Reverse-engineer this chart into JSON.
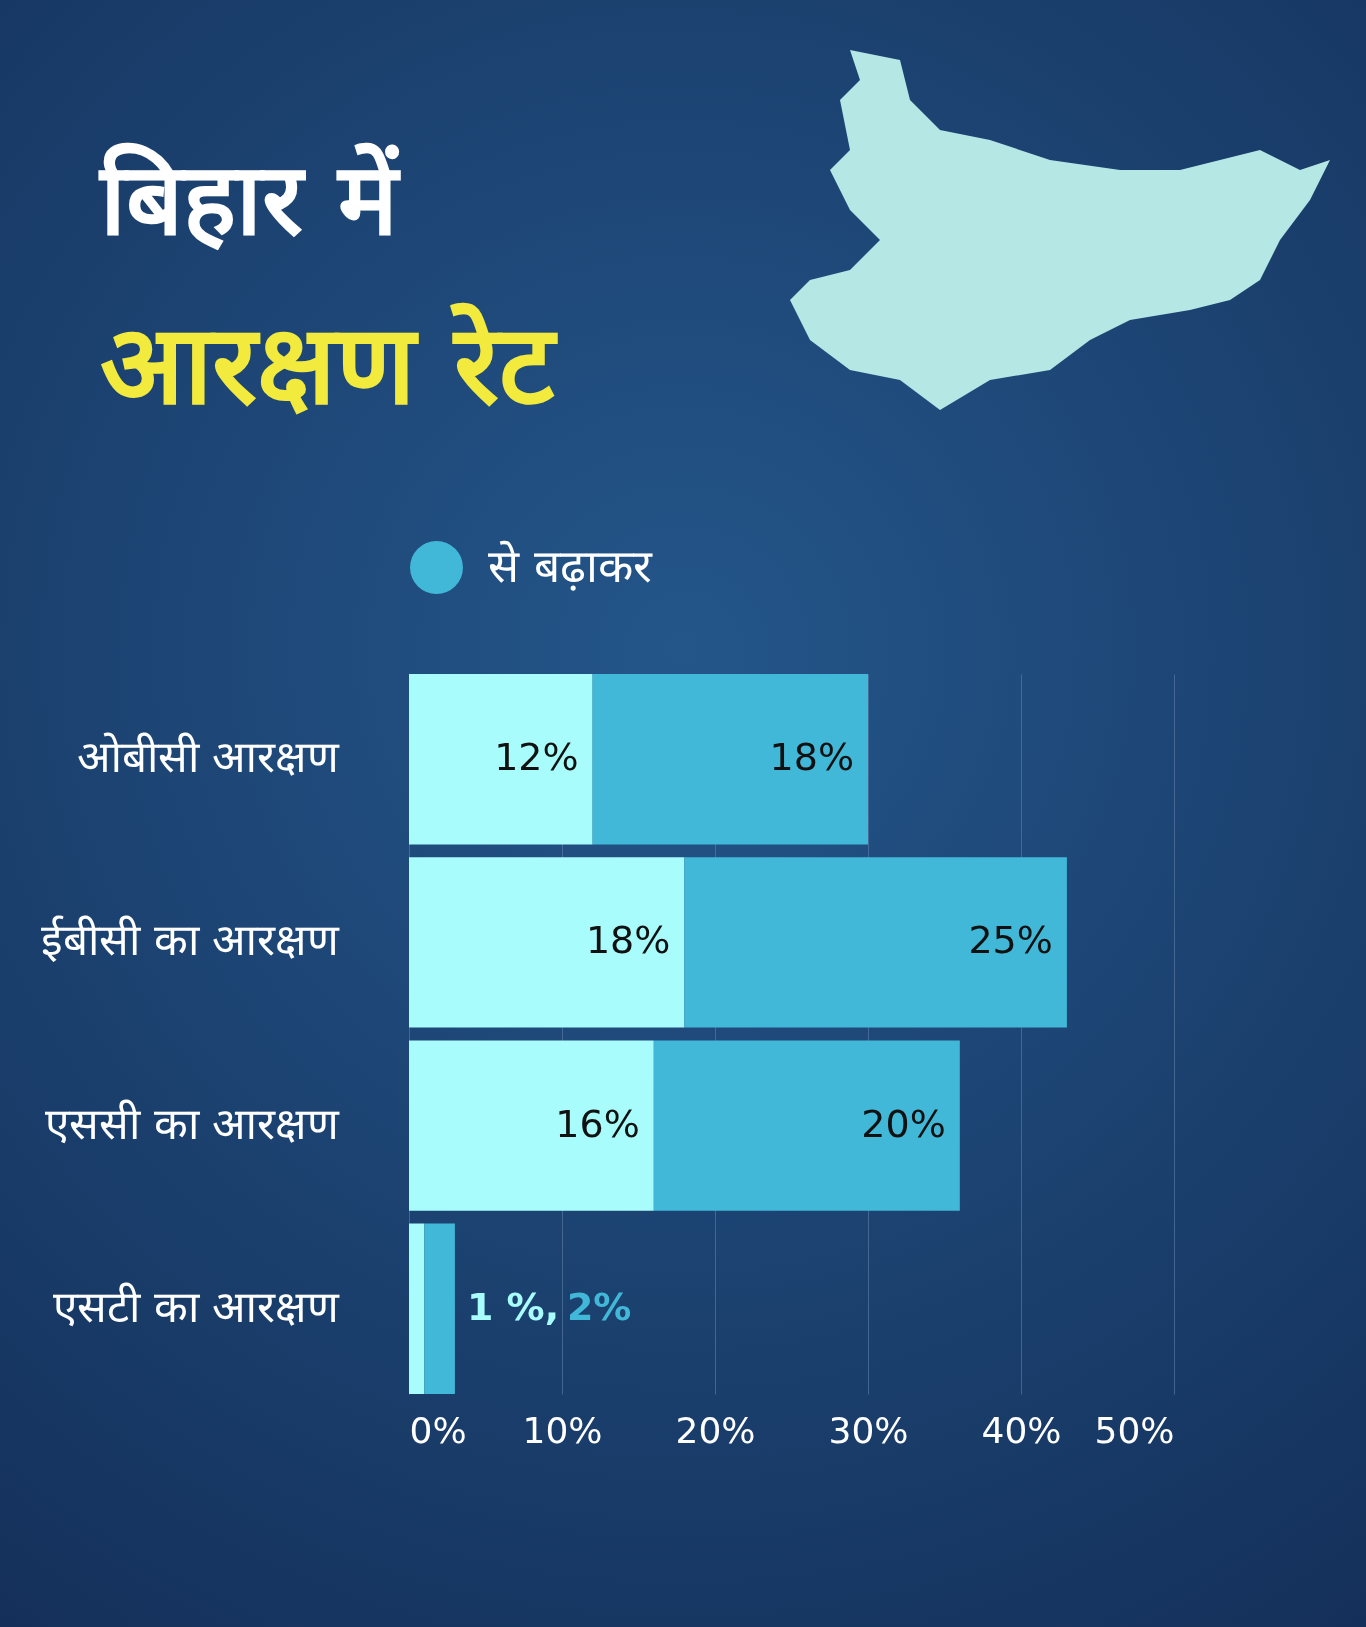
{
  "chart_data": {
    "type": "bar",
    "orientation": "horizontal",
    "stacked": true,
    "title": "बिहार में",
    "subtitle": "आरक्षण रेट",
    "categories": [
      "ओबीसी आरक्षण",
      "ईबीसी का आरक्षण",
      "एससी का आरक्षण",
      "एसटी का आरक्षण"
    ],
    "series": [
      {
        "color": "#a8fcfc",
        "values": [
          12,
          18,
          16,
          1
        ],
        "value_labels": [
          "12%",
          "18%",
          "16%",
          "1 %,"
        ]
      },
      {
        "name": "से बढ़ाकर",
        "color": "#42b8d8",
        "values": [
          18,
          25,
          20,
          2
        ],
        "value_labels": [
          "18%",
          "25%",
          "20%",
          "2%"
        ]
      }
    ],
    "xlim": [
      0,
      50
    ],
    "xticks": [
      {
        "value": 0,
        "label": "0%"
      },
      {
        "value": 10,
        "label": "10%"
      },
      {
        "value": 20,
        "label": "20%"
      },
      {
        "value": 30,
        "label": "30%"
      },
      {
        "value": 40,
        "label": "40%"
      },
      {
        "value": 50,
        "label": "50%"
      }
    ],
    "grid": "x",
    "legend": "top"
  }
}
